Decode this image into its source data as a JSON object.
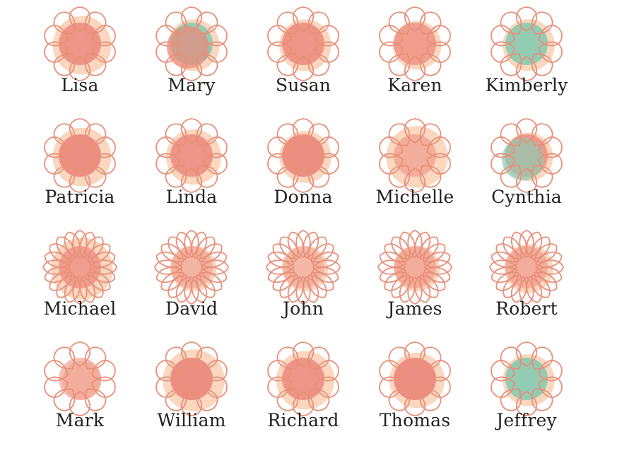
{
  "colors": {
    "petal_stroke": "#e8907a",
    "halo": "#f8c9a8",
    "core_coral": "#ec8a7e",
    "core_green": "#8ccbb2",
    "text": "#222222"
  },
  "flowers": [
    {
      "name": "Lisa",
      "petals": 10,
      "core": "coral",
      "core_opacity": 0.85,
      "halo_size": 0.9,
      "second_core": null
    },
    {
      "name": "Mary",
      "petals": 10,
      "core": "green",
      "core_opacity": 0.95,
      "halo_size": 0.8,
      "second_core": "coral"
    },
    {
      "name": "Susan",
      "petals": 10,
      "core": "coral",
      "core_opacity": 0.85,
      "halo_size": 0.8,
      "second_core": null
    },
    {
      "name": "Karen",
      "petals": 10,
      "core": "coral",
      "core_opacity": 0.75,
      "halo_size": 0.75,
      "second_core": null
    },
    {
      "name": "Kimberly",
      "petals": 10,
      "core": "green",
      "core_opacity": 0.95,
      "halo_size": 0.8,
      "second_core": null
    },
    {
      "name": "Patricia",
      "petals": 10,
      "core": "coral",
      "core_opacity": 0.95,
      "halo_size": 0.9,
      "second_core": null
    },
    {
      "name": "Linda",
      "petals": 10,
      "core": "coral",
      "core_opacity": 0.85,
      "halo_size": 0.85,
      "second_core": null
    },
    {
      "name": "Donna",
      "petals": 10,
      "core": "coral",
      "core_opacity": 0.95,
      "halo_size": 0.8,
      "second_core": null
    },
    {
      "name": "Michelle",
      "petals": 10,
      "core": "coral",
      "core_opacity": 0.55,
      "halo_size": 0.95,
      "second_core": null
    },
    {
      "name": "Cynthia",
      "petals": 10,
      "core": "coral",
      "core_opacity": 0.8,
      "halo_size": 0.75,
      "second_core": "green"
    },
    {
      "name": "Michael",
      "petals": 20,
      "core": "coral",
      "core_opacity": 0.75,
      "halo_size": 0.95,
      "second_core": null
    },
    {
      "name": "David",
      "petals": 20,
      "core": "coral",
      "core_opacity": 0.45,
      "halo_size": 0.7,
      "second_core": null
    },
    {
      "name": "John",
      "petals": 20,
      "core": "coral",
      "core_opacity": 0.4,
      "halo_size": 0.7,
      "second_core": null
    },
    {
      "name": "James",
      "petals": 20,
      "core": "coral",
      "core_opacity": 0.55,
      "halo_size": 0.7,
      "second_core": null
    },
    {
      "name": "Robert",
      "petals": 20,
      "core": "coral",
      "core_opacity": 0.55,
      "halo_size": 0.75,
      "second_core": null
    },
    {
      "name": "Mark",
      "petals": 10,
      "core": "coral",
      "core_opacity": 0.55,
      "halo_size": 0.6,
      "second_core": null
    },
    {
      "name": "William",
      "petals": 10,
      "core": "coral",
      "core_opacity": 0.95,
      "halo_size": 0.95,
      "second_core": null
    },
    {
      "name": "Richard",
      "petals": 10,
      "core": "coral",
      "core_opacity": 0.85,
      "halo_size": 0.9,
      "second_core": null
    },
    {
      "name": "Thomas",
      "petals": 10,
      "core": "coral",
      "core_opacity": 0.95,
      "halo_size": 0.85,
      "second_core": null
    },
    {
      "name": "Jeffrey",
      "petals": 10,
      "core": "green",
      "core_opacity": 0.95,
      "halo_size": 0.8,
      "second_core": null
    }
  ]
}
